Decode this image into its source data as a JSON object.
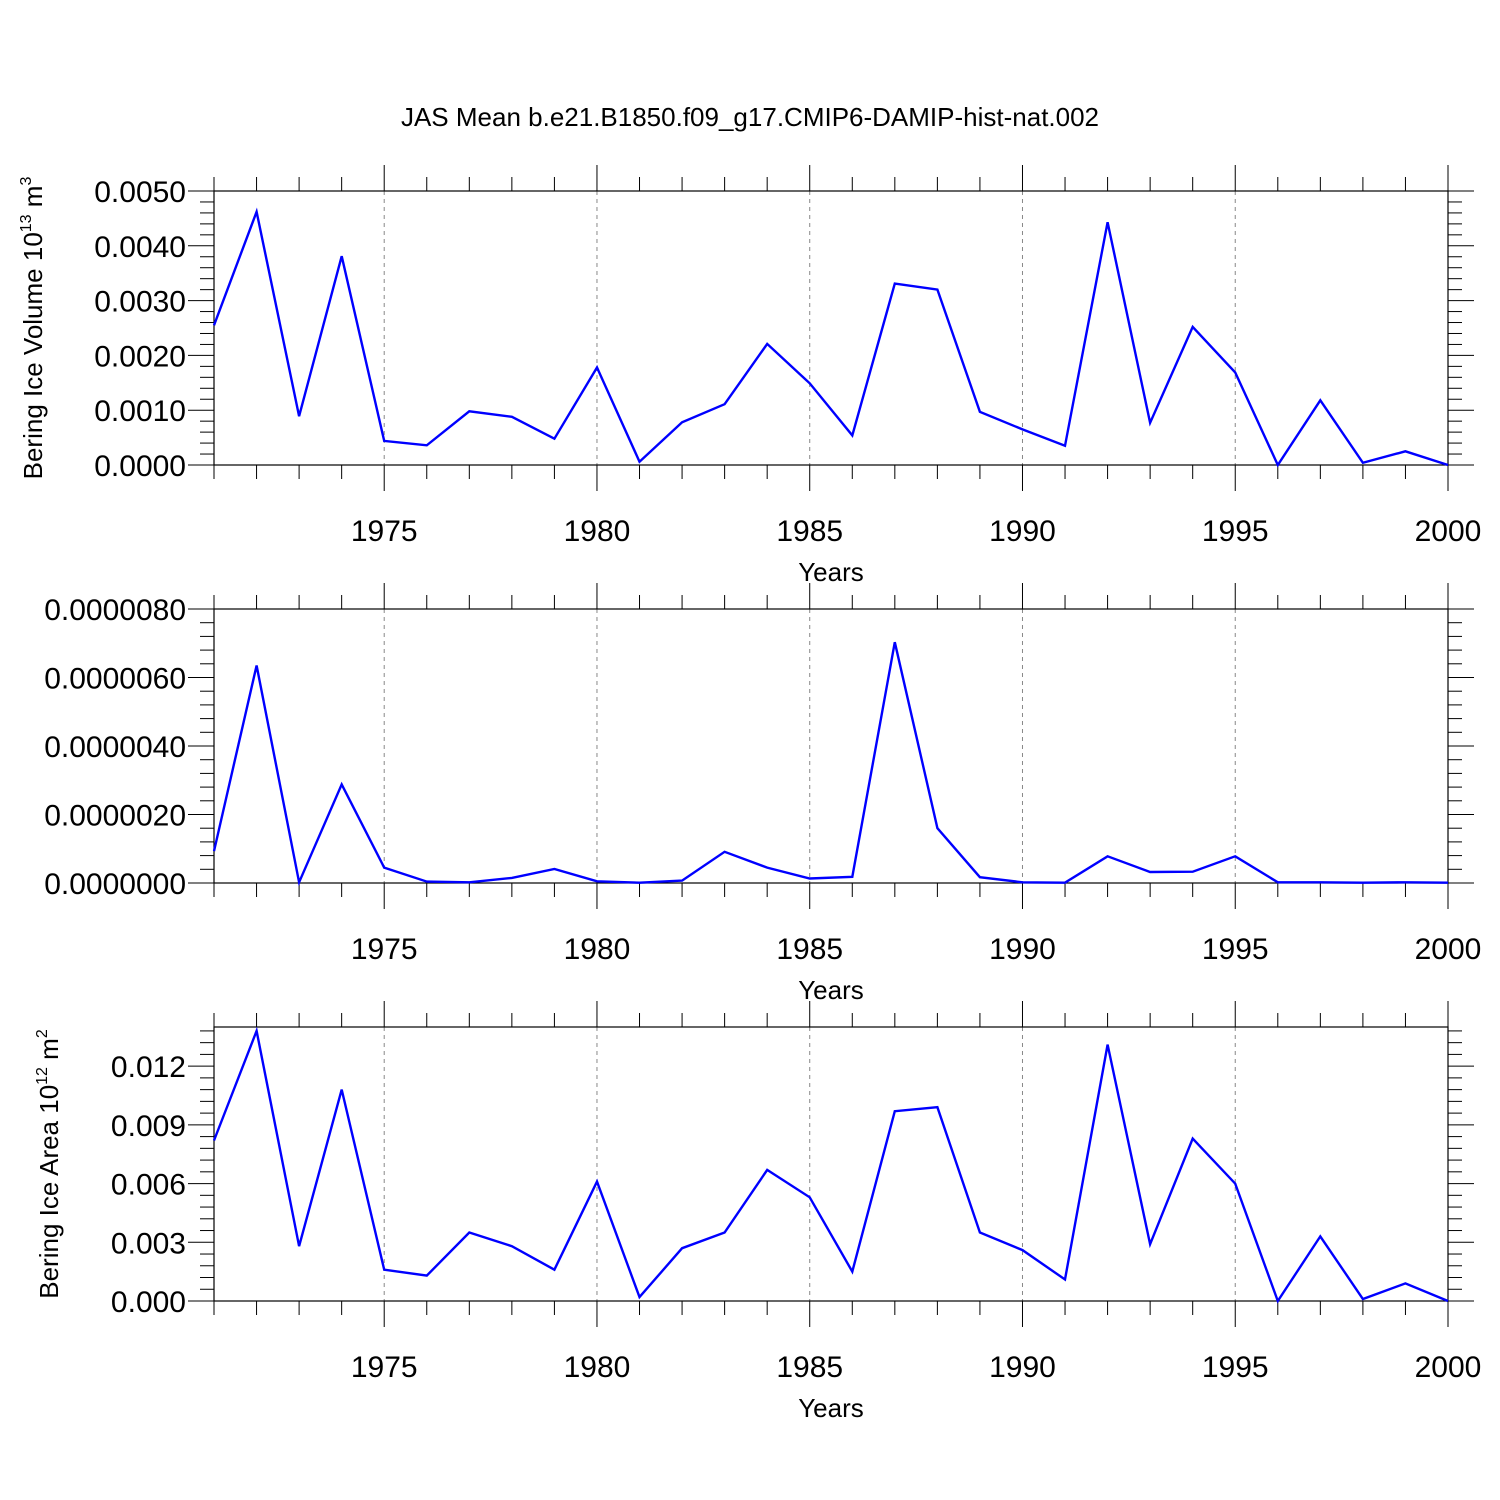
{
  "title": "JAS Mean b.e21.B1850.f09_g17.CMIP6-DAMIP-hist-nat.002",
  "line_color": "#0000ff",
  "chart_data": [
    {
      "type": "line",
      "series_name": "",
      "ylabel": "Bering Ice Volume 10",
      "ylabel_sup1": "13",
      "ylabel_unit": " m",
      "ylabel_sup2": "3",
      "xlabel": "Years",
      "xlim": [
        1971,
        2000
      ],
      "ylim": [
        0,
        0.005
      ],
      "y_ticks": [
        0,
        0.001,
        0.002,
        0.003,
        0.004,
        0.005
      ],
      "y_tick_labels": [
        "0.0000",
        "0.0010",
        "0.0020",
        "0.0030",
        "0.0040",
        "0.0050"
      ],
      "x_ticks": [
        1975,
        1980,
        1985,
        1990,
        1995,
        2000
      ],
      "x_tick_labels": [
        "1975",
        "1980",
        "1985",
        "1990",
        "1995",
        "2000"
      ],
      "grid": "dashed vertical at major x ticks",
      "x": [
        1971,
        1972,
        1973,
        1974,
        1975,
        1976,
        1977,
        1978,
        1979,
        1980,
        1981,
        1982,
        1983,
        1984,
        1985,
        1986,
        1987,
        1988,
        1989,
        1990,
        1991,
        1992,
        1993,
        1994,
        1995,
        1996,
        1997,
        1998,
        1999,
        2000
      ],
      "values": [
        0.00255,
        0.00462,
        0.00089,
        0.00381,
        0.00044,
        0.00036,
        0.00098,
        0.00088,
        0.00048,
        0.00178,
        6e-05,
        0.00078,
        0.00111,
        0.00221,
        0.00149,
        0.00054,
        0.00331,
        0.0032,
        0.00097,
        0.00065,
        0.00035,
        0.00443,
        0.00077,
        0.00252,
        0.00169,
        0.0,
        0.00118,
        4e-05,
        0.00025,
        0.0
      ]
    },
    {
      "type": "line",
      "series_name": "",
      "ylabel": "",
      "ylabel_sup1": "",
      "ylabel_unit": "",
      "ylabel_sup2": "",
      "xlabel": "Years",
      "xlim": [
        1971,
        2000
      ],
      "ylim": [
        0,
        8e-06
      ],
      "y_ticks": [
        0,
        2e-06,
        4e-06,
        6e-06,
        8e-06
      ],
      "y_tick_labels": [
        "0.0000000",
        "0.0000020",
        "0.0000040",
        "0.0000060",
        "0.0000080"
      ],
      "x_ticks": [
        1975,
        1980,
        1985,
        1990,
        1995,
        2000
      ],
      "x_tick_labels": [
        "1975",
        "1980",
        "1985",
        "1990",
        "1995",
        "2000"
      ],
      "grid": "dashed vertical at major x ticks",
      "x": [
        1971,
        1972,
        1973,
        1974,
        1975,
        1976,
        1977,
        1978,
        1979,
        1980,
        1981,
        1982,
        1983,
        1984,
        1985,
        1986,
        1987,
        1988,
        1989,
        1990,
        1991,
        1992,
        1993,
        1994,
        1995,
        1996,
        1997,
        1998,
        1999,
        2000
      ],
      "values": [
        9.3e-07,
        6.35e-06,
        2e-08,
        2.88e-06,
        4.5e-07,
        4e-08,
        2e-08,
        1.5e-07,
        4.1e-07,
        5e-08,
        1e-08,
        7e-08,
        9.1e-07,
        4.5e-07,
        1.3e-07,
        1.8e-07,
        7.03e-06,
        1.6e-06,
        1.7e-07,
        2e-08,
        1e-08,
        7.8e-07,
        3.2e-07,
        3.3e-07,
        7.8e-07,
        2e-08,
        2e-08,
        1e-08,
        2e-08,
        1e-08
      ]
    },
    {
      "type": "line",
      "series_name": "",
      "ylabel": "Bering Ice Area 10",
      "ylabel_sup1": "12",
      "ylabel_unit": " m",
      "ylabel_sup2": "2",
      "xlabel": "Years",
      "xlim": [
        1971,
        2000
      ],
      "ylim": [
        0,
        0.014
      ],
      "y_ticks": [
        0,
        0.003,
        0.006,
        0.009,
        0.012
      ],
      "y_tick_labels": [
        "0.000",
        "0.003",
        "0.006",
        "0.009",
        "0.012"
      ],
      "x_ticks": [
        1975,
        1980,
        1985,
        1990,
        1995,
        2000
      ],
      "x_tick_labels": [
        "1975",
        "1980",
        "1985",
        "1990",
        "1995",
        "2000"
      ],
      "grid": "dashed vertical at major x ticks",
      "x": [
        1971,
        1972,
        1973,
        1974,
        1975,
        1976,
        1977,
        1978,
        1979,
        1980,
        1981,
        1982,
        1983,
        1984,
        1985,
        1986,
        1987,
        1988,
        1989,
        1990,
        1991,
        1992,
        1993,
        1994,
        1995,
        1996,
        1997,
        1998,
        1999,
        2000
      ],
      "values": [
        0.0082,
        0.0138,
        0.0028,
        0.0108,
        0.0016,
        0.0013,
        0.0035,
        0.0028,
        0.0016,
        0.0061,
        0.0002,
        0.0027,
        0.0035,
        0.0067,
        0.0053,
        0.0015,
        0.0097,
        0.0099,
        0.0035,
        0.0026,
        0.0011,
        0.0131,
        0.0029,
        0.0083,
        0.006,
        0.0,
        0.0033,
        0.0001,
        0.0009,
        0.0
      ]
    }
  ]
}
